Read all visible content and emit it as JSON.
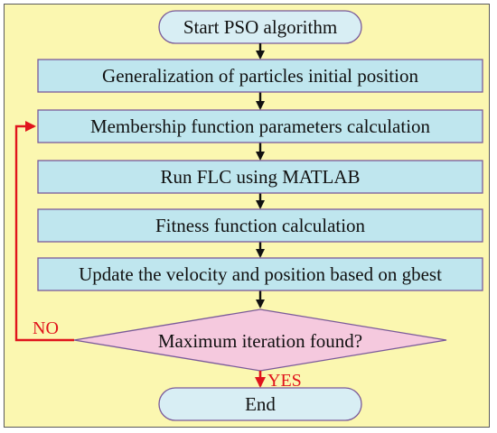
{
  "flowchart": {
    "start_label": "Start PSO algorithm",
    "steps": [
      "Generalization of particles initial position",
      "Membership function parameters calculation",
      "Run FLC using MATLAB",
      "Fitness function calculation",
      "Update the velocity and position based on gbest"
    ],
    "decision_label": "Maximum iteration found?",
    "no_label": "NO",
    "yes_label": "YES",
    "end_label": "End"
  },
  "colors": {
    "background": "#fbf7b0",
    "process_fill": "#bfe6ee",
    "terminal_fill": "#d8eef4",
    "decision_fill": "#f5c9de",
    "box_border": "#7a5a9a",
    "loop_arrow": "#e0141c",
    "arrow": "#111111"
  }
}
